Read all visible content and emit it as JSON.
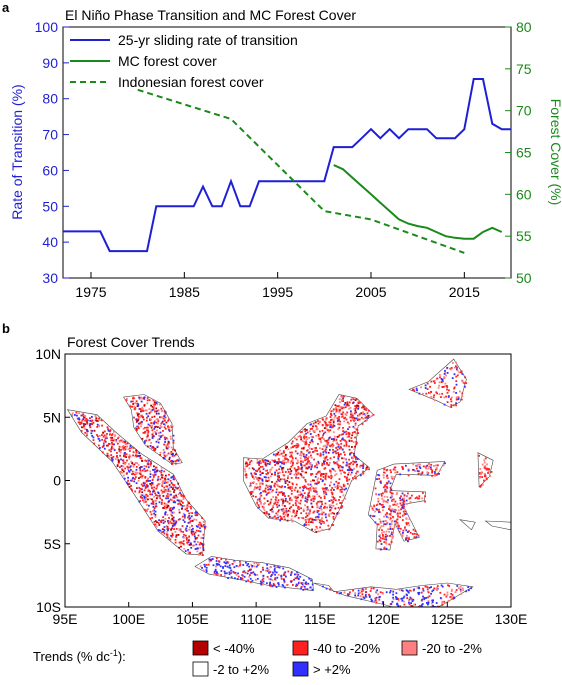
{
  "panel_a": {
    "letter": "a",
    "chart_data": {
      "type": "line",
      "title": "El Niño Phase Transition and MC Forest Cover",
      "xlabel": "",
      "ylabel_left": "Rate of Transition (%)",
      "ylabel_right": "Forest Cover (%)",
      "xlim": [
        1972,
        2020
      ],
      "ylim_left": [
        30,
        100
      ],
      "ylim_right": [
        50,
        80
      ],
      "x_ticks": [
        1975,
        1985,
        1995,
        2005,
        2015
      ],
      "y_ticks_left": [
        30,
        40,
        50,
        60,
        70,
        80,
        90,
        100
      ],
      "y_ticks_right": [
        50,
        55,
        60,
        65,
        70,
        75,
        80
      ],
      "legend_position": "top-left",
      "series": [
        {
          "name": "25-yr sliding rate of transition",
          "axis": "left",
          "color": "#1f1fd6",
          "style": "solid",
          "x": [
            1972,
            1976,
            1977,
            1978,
            1980,
            1981,
            1982,
            1983,
            1985,
            1986,
            1987,
            1988,
            1989,
            1990,
            1991,
            1992,
            1993,
            1994,
            1995,
            1996,
            1997,
            1998,
            1999,
            2000,
            2001,
            2002,
            2003,
            2004,
            2005,
            2006,
            2007,
            2008,
            2009,
            2010,
            2011,
            2012,
            2013,
            2014,
            2015,
            2016,
            2017,
            2018,
            2019,
            2020
          ],
          "values": [
            43,
            43,
            37.5,
            37.5,
            37.5,
            37.5,
            50,
            50,
            50,
            50,
            55.5,
            50,
            50,
            57,
            50,
            50,
            57,
            57,
            57,
            57,
            57,
            57,
            57,
            57,
            66.5,
            66.5,
            66.5,
            69,
            71.5,
            69,
            71.5,
            69,
            71.5,
            71.5,
            71.5,
            69,
            69,
            69,
            71.5,
            85.5,
            85.5,
            73,
            71.5,
            71.5
          ]
        },
        {
          "name": "MC forest cover",
          "axis": "right",
          "color": "#1a8a1a",
          "style": "solid",
          "x": [
            2001,
            2002,
            2003,
            2004,
            2005,
            2006,
            2007,
            2008,
            2009,
            2010,
            2011,
            2012,
            2013,
            2014,
            2015,
            2016,
            2017,
            2018,
            2019
          ],
          "values": [
            63.5,
            63,
            62,
            61,
            60,
            59,
            58,
            57,
            56.5,
            56.2,
            56,
            55.5,
            55,
            54.8,
            54.7,
            54.7,
            55.5,
            56,
            55.5
          ]
        },
        {
          "name": "Indonesian forest cover",
          "axis": "right",
          "color": "#1a8a1a",
          "style": "dashed",
          "x": [
            1980,
            1990,
            2000,
            2005,
            2010,
            2015
          ],
          "values": [
            72.5,
            69,
            58,
            57,
            55,
            53
          ]
        }
      ]
    }
  },
  "panel_b": {
    "letter": "b",
    "title": "Forest Cover Trends",
    "x_ticks": [
      "95E",
      "100E",
      "105E",
      "110E",
      "115E",
      "120E",
      "125E",
      "130E"
    ],
    "y_ticks": [
      "10N",
      "5N",
      "0",
      "5S",
      "10S"
    ],
    "legend_title": "Trends (% dc",
    "legend_title_sup": "-1",
    "legend_title_end": "):",
    "legend": [
      {
        "label": "< -40%",
        "color": "#b30000"
      },
      {
        "label": "-40 to -20%",
        "color": "#ff2020"
      },
      {
        "label": "-20 to -2%",
        "color": "#ff8080"
      },
      {
        "label": "-2 to +2%",
        "color": "#ffffff"
      },
      {
        "label": "> +2%",
        "color": "#3030ff"
      }
    ],
    "colors": {
      "coast": "#444444",
      "blue": "#3030ff",
      "red": "#ff2020",
      "pink": "#ff8080",
      "darkred": "#b30000"
    }
  }
}
